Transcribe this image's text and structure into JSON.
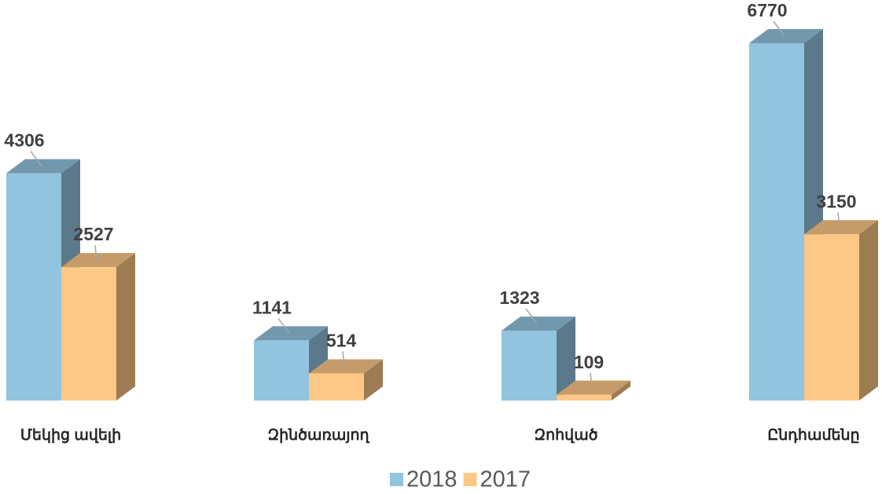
{
  "chart_data": {
    "type": "bar3d",
    "categories": [
      "Մեկից ավելի",
      "Զինծառայող",
      "Զոհված",
      "Ընդհամենը"
    ],
    "series": [
      {
        "name": "2018",
        "color": "#92c3df",
        "values": [
          4306,
          1141,
          1323,
          6770
        ]
      },
      {
        "name": "2017",
        "color": "#fdc886",
        "values": [
          2527,
          514,
          109,
          3150
        ]
      }
    ],
    "legend": "bottom"
  }
}
